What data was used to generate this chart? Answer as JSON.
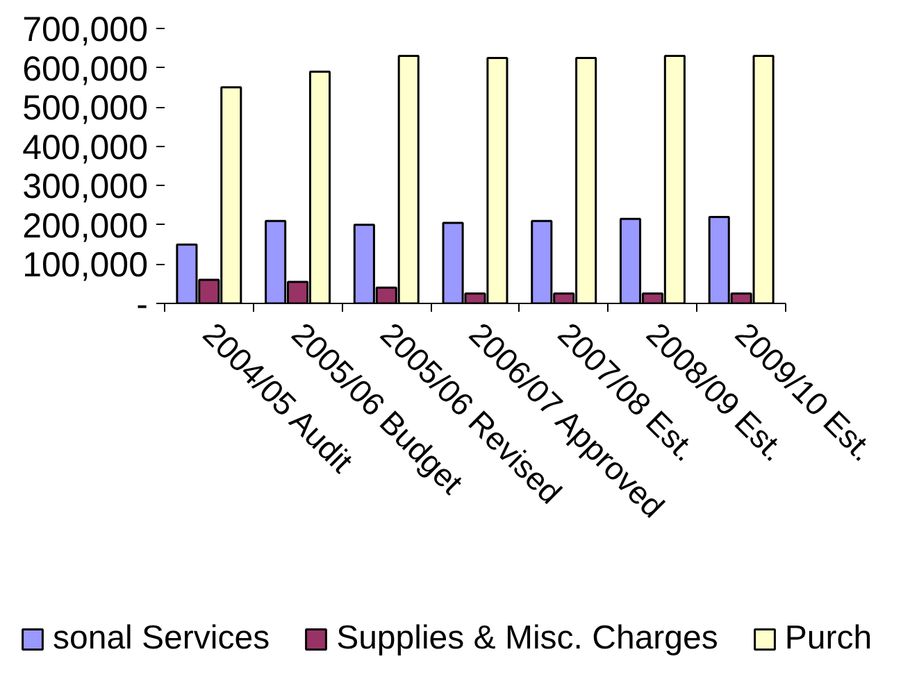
{
  "chart_data": {
    "type": "bar",
    "categories": [
      "2004/05 Audit",
      "2005/06 Budget",
      "2005/06 Revised",
      "2006/07 Approved",
      "2007/08 Est.",
      "2008/09 Est.",
      "2009/10 Est."
    ],
    "series": [
      {
        "name": "sonal Services",
        "color": "#9999ff",
        "values": [
          150000,
          210000,
          200000,
          205000,
          210000,
          215000,
          220000
        ]
      },
      {
        "name": "Supplies & Misc. Charges",
        "color": "#993366",
        "values": [
          60000,
          55000,
          40000,
          25000,
          25000,
          25000,
          25000
        ]
      },
      {
        "name": "Purch",
        "color": "#ffffcc",
        "values": [
          550000,
          590000,
          630000,
          625000,
          625000,
          630000,
          630000
        ]
      }
    ],
    "ylim": [
      0,
      700000
    ],
    "yticks": [
      {
        "value": 0,
        "label": "-"
      },
      {
        "value": 100000,
        "label": "100,000"
      },
      {
        "value": 200000,
        "label": "200,000"
      },
      {
        "value": 300000,
        "label": "300,000"
      },
      {
        "value": 400000,
        "label": "400,000"
      },
      {
        "value": 500000,
        "label": "500,000"
      },
      {
        "value": 600000,
        "label": "600,000"
      },
      {
        "value": 700000,
        "label": "700,000"
      }
    ],
    "grid": false,
    "legend": "bottom"
  }
}
